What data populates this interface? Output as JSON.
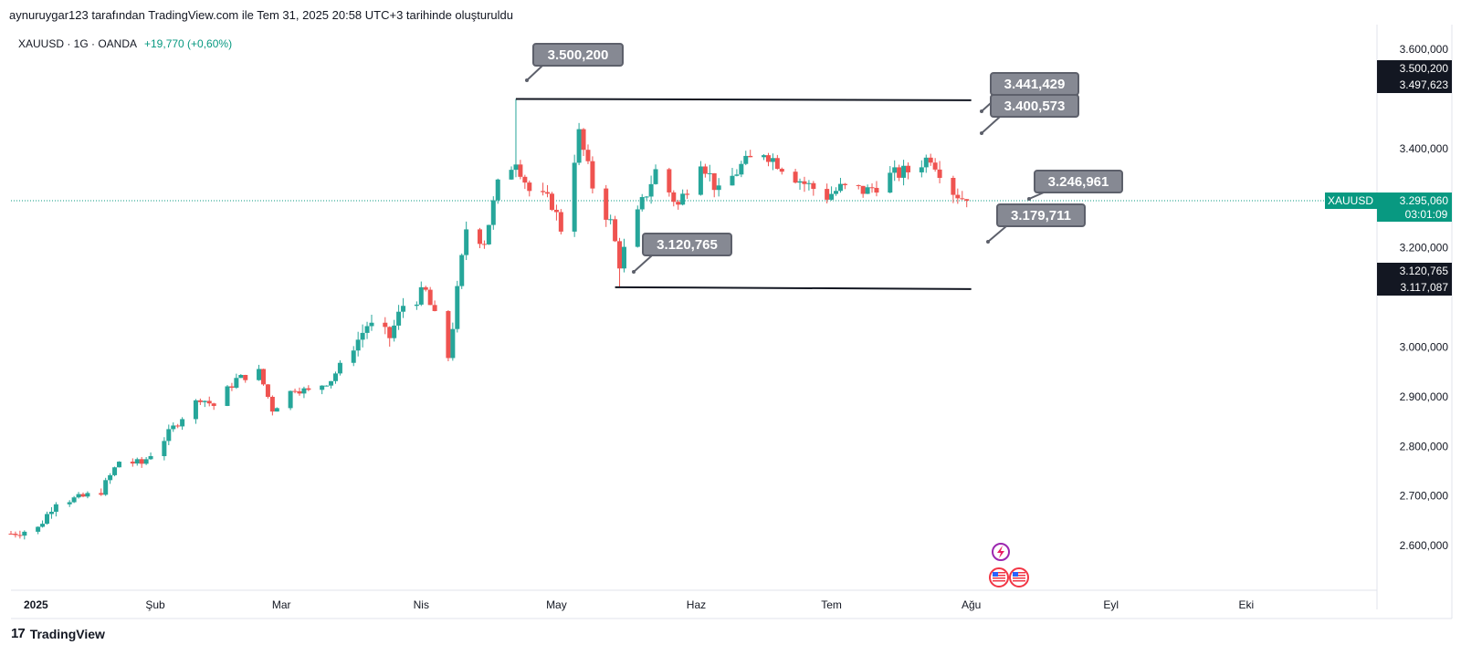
{
  "header": {
    "attribution": "aynuruygar123 tarafından TradingView.com ile Tem 31, 2025 20:58 UTC+3 tarihinde oluşturuldu"
  },
  "legend": {
    "symbol_line": "XAUUSD · 1G · OANDA",
    "change": "+19,770 (+0,60%)"
  },
  "footer": {
    "logo_text": "TradingView"
  },
  "colors": {
    "up": "#26a69a",
    "down": "#ef5350",
    "callout": "#868993",
    "callout_border": "#5d606b",
    "callout_text": "#ffffff",
    "axis_text": "#131722",
    "current_price": "#089981",
    "axis_badge": "#131722",
    "line": "#131722"
  },
  "annotations": {
    "callouts": [
      {
        "text": "3.500,200"
      },
      {
        "text": "3.441,429"
      },
      {
        "text": "3.400,573"
      },
      {
        "text": "3.246,961"
      },
      {
        "text": "3.179,711"
      },
      {
        "text": "3.120,765"
      }
    ],
    "trend_lines": [
      {
        "from_date": "2025-04-22",
        "from": 3500.2,
        "to_date": "2025-08-01",
        "to": 3497.623
      },
      {
        "from_date": "2025-05-14",
        "from": 3120.765,
        "to_date": "2025-08-01",
        "to": 3117.087
      }
    ],
    "event_icons": [
      "lightning-icon",
      "us-flag-icon",
      "us-flag-icon"
    ]
  },
  "price_axis_badges": [
    {
      "text": "3.500,200"
    },
    {
      "text": "3.497,623"
    },
    {
      "text": "3.120,765"
    },
    {
      "text": "3.117,087"
    }
  ],
  "current_price": {
    "symbol": "XAUUSD",
    "price": "3.295,060",
    "countdown": "03:01:09",
    "value": 3295.06
  },
  "chart_data": {
    "type": "candlestick",
    "title": "",
    "symbol": "XAUUSD",
    "interval": "1G",
    "source": "OANDA",
    "y_ticks": [
      "3.600,000",
      "3.400,000",
      "3.200,000",
      "3.000,000",
      "2.900,000",
      "2.800,000",
      "2.700,000",
      "2.600,000"
    ],
    "y_tick_values": [
      3600,
      3400,
      3200,
      3000,
      2900,
      2800,
      2700,
      2600
    ],
    "x_ticks": [
      "2025",
      "Şub",
      "Mar",
      "Nis",
      "May",
      "Haz",
      "Tem",
      "Ağu",
      "Eyl",
      "Eki"
    ],
    "x_tick_dates": [
      "2025-01-01",
      "2025-02-01",
      "2025-03-01",
      "2025-04-01",
      "2025-05-01",
      "2025-06-01",
      "2025-07-01",
      "2025-08-01",
      "2025-09-01",
      "2025-10-01"
    ],
    "ylim": [
      2510,
      3650
    ],
    "xlim": [
      "2024-12-31",
      "2025-10-30"
    ],
    "grid": false,
    "scale": "linear",
    "close_path": [
      [
        "2024-12-31",
        2624
      ],
      [
        "2025-01-06",
        2635
      ],
      [
        "2025-01-10",
        2690
      ],
      [
        "2025-01-15",
        2695
      ],
      [
        "2025-01-20",
        2710
      ],
      [
        "2025-01-24",
        2770
      ],
      [
        "2025-01-29",
        2765
      ],
      [
        "2025-02-03",
        2815
      ],
      [
        "2025-02-07",
        2860
      ],
      [
        "2025-02-11",
        2898
      ],
      [
        "2025-02-14",
        2882
      ],
      [
        "2025-02-19",
        2935
      ],
      [
        "2025-02-24",
        2950
      ],
      [
        "2025-02-27",
        2875
      ],
      [
        "2025-03-04",
        2918
      ],
      [
        "2025-03-07",
        2910
      ],
      [
        "2025-03-12",
        2935
      ],
      [
        "2025-03-17",
        3000
      ],
      [
        "2025-03-20",
        3045
      ],
      [
        "2025-03-25",
        3020
      ],
      [
        "2025-03-28",
        3085
      ],
      [
        "2025-04-02",
        3110
      ],
      [
        "2025-04-07",
        2980
      ],
      [
        "2025-04-11",
        3240
      ],
      [
        "2025-04-15",
        3215
      ],
      [
        "2025-04-18",
        3325
      ],
      [
        "2025-04-22",
        3380
      ],
      [
        "2025-04-25",
        3315
      ],
      [
        "2025-04-30",
        3290
      ],
      [
        "2025-05-02",
        3240
      ],
      [
        "2025-05-06",
        3430
      ],
      [
        "2025-05-09",
        3325
      ],
      [
        "2025-05-13",
        3250
      ],
      [
        "2025-05-15",
        3170
      ],
      [
        "2025-05-20",
        3290
      ],
      [
        "2025-05-23",
        3355
      ],
      [
        "2025-05-28",
        3285
      ],
      [
        "2025-06-02",
        3380
      ],
      [
        "2025-06-06",
        3310
      ],
      [
        "2025-06-11",
        3365
      ],
      [
        "2025-06-16",
        3395
      ],
      [
        "2025-06-20",
        3365
      ],
      [
        "2025-06-25",
        3330
      ],
      [
        "2025-06-30",
        3305
      ],
      [
        "2025-07-03",
        3320
      ],
      [
        "2025-07-09",
        3315
      ],
      [
        "2025-07-14",
        3345
      ],
      [
        "2025-07-18",
        3355
      ],
      [
        "2025-07-23",
        3385
      ],
      [
        "2025-07-28",
        3315
      ],
      [
        "2025-07-31",
        3295
      ]
    ],
    "notable_points": [
      {
        "label": "high",
        "date": "2025-04-22",
        "value": 3500.2
      },
      {
        "label": "low",
        "date": "2025-05-15",
        "value": 3120.765
      }
    ]
  }
}
